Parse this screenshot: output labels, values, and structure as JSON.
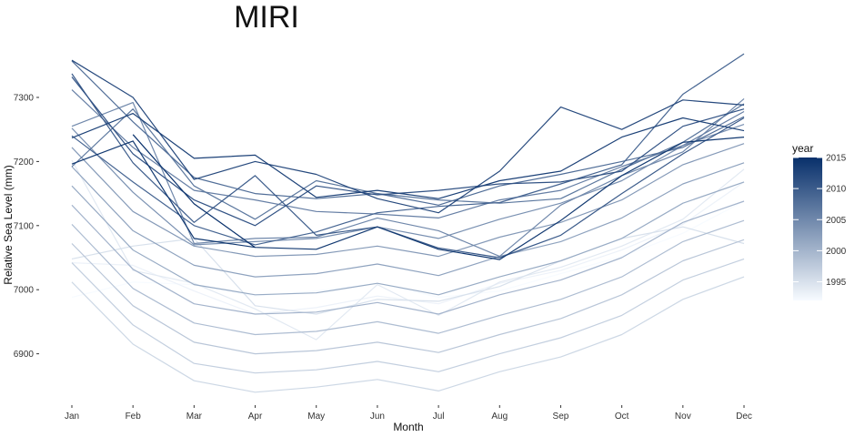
{
  "chart_data": {
    "type": "line",
    "title": "MIRI",
    "xlabel": "Month",
    "ylabel": "Relative Sea Level (mm)",
    "categories": [
      "Jan",
      "Feb",
      "Mar",
      "Apr",
      "May",
      "Jun",
      "Jul",
      "Aug",
      "Sep",
      "Oct",
      "Nov",
      "Dec"
    ],
    "yticks": [
      6900,
      7000,
      7100,
      7200,
      7300
    ],
    "ytick_labels": [
      "6900",
      "7000",
      "7100",
      "7200",
      "7300"
    ],
    "ylim": [
      6830,
      7370
    ],
    "grid": false,
    "legend": {
      "title": "year",
      "position": "right",
      "range": [
        1992,
        2015
      ],
      "ticks": [
        1995,
        2000,
        2005,
        2010,
        2015
      ],
      "tick_labels": [
        "1995",
        "2000",
        "2005",
        "2010",
        "2015"
      ],
      "color_low": "#f7fbff",
      "color_high": "#08306b"
    },
    "series": [
      {
        "year": 1992,
        "values": [
          6988,
          7012,
          7008,
          6990,
          6998,
          7010,
          6988,
          6998,
          7025,
          7052,
          7088,
          7138
        ]
      },
      {
        "year": 1993,
        "values": [
          7042,
          7038,
          6998,
          6962,
          6972,
          6990,
          6978,
          7010,
          7030,
          7062,
          7102,
          7168
        ]
      },
      {
        "year": 1994,
        "values": [
          7202,
          7030,
          7010,
          6970,
          6922,
          7008,
          6960,
          7012,
          7035,
          7068,
          7110,
          7188
        ]
      },
      {
        "year": 1995,
        "values": [
          7048,
          7068,
          7080,
          6975,
          6962,
          6985,
          6982,
          7005,
          7045,
          7080,
          7098,
          7072
        ]
      },
      {
        "year": 1996,
        "values": [
          7012,
          6915,
          6858,
          6840,
          6848,
          6860,
          6842,
          6872,
          6895,
          6930,
          6985,
          7020
        ]
      },
      {
        "year": 1997,
        "values": [
          7042,
          6945,
          6885,
          6870,
          6875,
          6888,
          6872,
          6900,
          6925,
          6960,
          7015,
          7048
        ]
      },
      {
        "year": 1998,
        "values": [
          7072,
          6975,
          6918,
          6900,
          6905,
          6918,
          6902,
          6930,
          6955,
          6992,
          7045,
          7078
        ]
      },
      {
        "year": 1999,
        "values": [
          7102,
          7002,
          6948,
          6930,
          6935,
          6950,
          6932,
          6960,
          6985,
          7020,
          7075,
          7108
        ]
      },
      {
        "year": 2000,
        "values": [
          7132,
          7032,
          6978,
          6962,
          6965,
          6980,
          6962,
          6992,
          7015,
          7050,
          7105,
          7138
        ]
      },
      {
        "year": 2001,
        "values": [
          7162,
          7062,
          7008,
          6992,
          6995,
          7010,
          6992,
          7020,
          7045,
          7080,
          7135,
          7168
        ]
      },
      {
        "year": 2002,
        "values": [
          7192,
          7092,
          7038,
          7020,
          7025,
          7040,
          7022,
          7052,
          7075,
          7112,
          7165,
          7198
        ]
      },
      {
        "year": 2003,
        "values": [
          7222,
          7122,
          7068,
          7052,
          7055,
          7068,
          7052,
          7082,
          7105,
          7140,
          7195,
          7228
        ]
      },
      {
        "year": 2004,
        "values": [
          7252,
          7152,
          7070,
          7075,
          7080,
          7098,
          7080,
          7110,
          7135,
          7170,
          7225,
          7258
        ]
      },
      {
        "year": 2005,
        "values": [
          7255,
          7292,
          7072,
          7080,
          7082,
          7112,
          7092,
          7052,
          7132,
          7178,
          7215,
          7298
        ]
      },
      {
        "year": 2006,
        "values": [
          7312,
          7222,
          7155,
          7140,
          7122,
          7118,
          7112,
          7140,
          7155,
          7192,
          7225,
          7278
        ]
      },
      {
        "year": 2007,
        "values": [
          7192,
          7282,
          7162,
          7110,
          7170,
          7150,
          7140,
          7135,
          7142,
          7188,
          7230,
          7290
        ]
      },
      {
        "year": 2008,
        "values": [
          7357,
          7262,
          7175,
          7150,
          7142,
          7150,
          7132,
          7162,
          7180,
          7200,
          7222,
          7270
        ]
      },
      {
        "year": 2009,
        "values": [
          7240,
          7168,
          7100,
          7070,
          7090,
          7120,
          7130,
          7136,
          7165,
          7195,
          7305,
          7368
        ]
      },
      {
        "year": 2010,
        "values": [
          7337,
          7198,
          7105,
          7178,
          7085,
          7098,
          7065,
          7050,
          7085,
          7150,
          7212,
          7268
        ]
      },
      {
        "year": 2011,
        "values": [
          7332,
          7212,
          7140,
          7100,
          7162,
          7148,
          7155,
          7165,
          7168,
          7185,
          7255,
          7282
        ]
      },
      {
        "year": 2012,
        "values": [
          7358,
          7300,
          7172,
          7200,
          7180,
          7142,
          7120,
          7185,
          7285,
          7250,
          7296,
          7288
        ]
      },
      {
        "year": 2013,
        "values": [
          7237,
          7275,
          7205,
          7210,
          7144,
          7155,
          7142,
          7170,
          7185,
          7238,
          7268,
          7248
        ]
      },
      {
        "year": 2014,
        "values": [
          7196,
          7232,
          7080,
          7066,
          7063,
          7098,
          7063,
          7047,
          7108,
          7178,
          7230,
          7238
        ]
      },
      {
        "year": 2015,
        "values": [
          null,
          7242,
          7134,
          7066,
          null,
          null,
          null,
          null,
          null,
          null,
          null,
          null
        ]
      }
    ]
  }
}
